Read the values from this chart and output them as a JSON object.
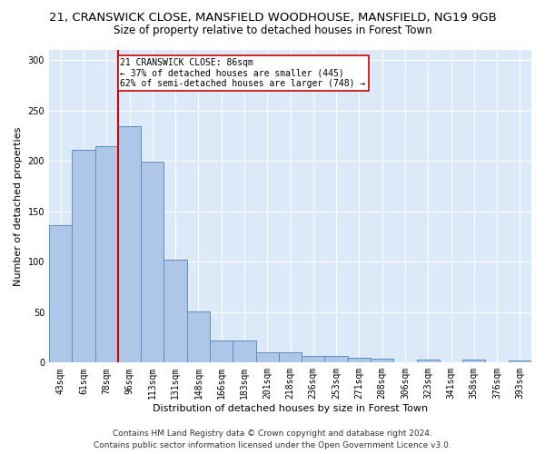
{
  "title1": "21, CRANSWICK CLOSE, MANSFIELD WOODHOUSE, MANSFIELD, NG19 9GB",
  "title2": "Size of property relative to detached houses in Forest Town",
  "xlabel": "Distribution of detached houses by size in Forest Town",
  "ylabel": "Number of detached properties",
  "footer1": "Contains HM Land Registry data © Crown copyright and database right 2024.",
  "footer2": "Contains public sector information licensed under the Open Government Licence v3.0.",
  "bin_labels": [
    "43sqm",
    "61sqm",
    "78sqm",
    "96sqm",
    "113sqm",
    "131sqm",
    "148sqm",
    "166sqm",
    "183sqm",
    "201sqm",
    "218sqm",
    "236sqm",
    "253sqm",
    "271sqm",
    "288sqm",
    "306sqm",
    "323sqm",
    "341sqm",
    "358sqm",
    "376sqm",
    "393sqm"
  ],
  "bar_values": [
    136,
    211,
    215,
    234,
    199,
    102,
    51,
    22,
    22,
    10,
    10,
    7,
    7,
    5,
    4,
    0,
    3,
    0,
    3,
    0,
    2
  ],
  "bar_color": "#aec6e8",
  "bar_edge_color": "#5a8fc0",
  "annotation_line1": "21 CRANSWICK CLOSE: 86sqm",
  "annotation_line2": "← 37% of detached houses are smaller (445)",
  "annotation_line3": "62% of semi-detached houses are larger (748) →",
  "annotation_box_color": "#ffffff",
  "annotation_box_edge": "#cc0000",
  "vline_color": "#cc0000",
  "vline_x": 2.5,
  "ylim": [
    0,
    310
  ],
  "yticks": [
    0,
    50,
    100,
    150,
    200,
    250,
    300
  ],
  "background_color": "#dce9f8",
  "grid_color": "#ffffff",
  "title_fontsize": 9.5,
  "subtitle_fontsize": 8.5,
  "axis_label_fontsize": 8,
  "tick_fontsize": 7,
  "footer_fontsize": 6.5
}
